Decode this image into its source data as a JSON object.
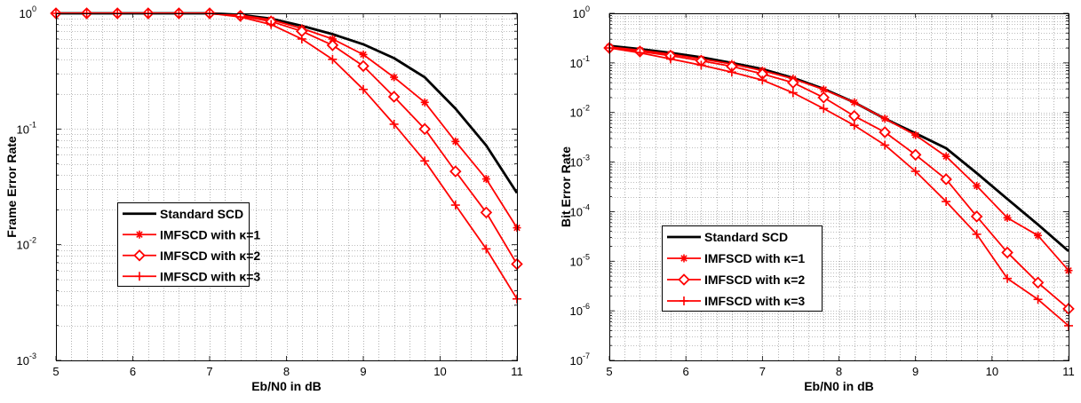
{
  "chart_data": [
    {
      "type": "line",
      "xlabel": "Eb/N0 in dB",
      "ylabel": "Frame Error Rate",
      "y_scale": "log",
      "xlim": [
        5,
        11
      ],
      "ylim": [
        0.001,
        1
      ],
      "x_ticks": [
        "5",
        "6",
        "7",
        "8",
        "9",
        "10",
        "11"
      ],
      "y_ticks": [
        {
          "base": "10",
          "exp": "-3"
        },
        {
          "base": "10",
          "exp": "-2"
        },
        {
          "base": "10",
          "exp": "-1"
        },
        {
          "base": "10",
          "exp": "0"
        }
      ],
      "grid": true,
      "legend_placement": "lower-left",
      "series": [
        {
          "name": "Standard SCD",
          "color": "#000000",
          "marker": "none",
          "x": [
            5,
            5.4,
            5.8,
            6.2,
            6.6,
            7,
            7.4,
            7.8,
            8.2,
            8.6,
            9,
            9.4,
            9.8,
            10.2,
            10.6,
            11
          ],
          "y": [
            1,
            1,
            1,
            1,
            1,
            1,
            0.97,
            0.9,
            0.78,
            0.66,
            0.54,
            0.41,
            0.28,
            0.15,
            0.072,
            0.028
          ]
        },
        {
          "name": "IMFSCD with κ=1",
          "color": "#ff0000",
          "marker": "star",
          "x": [
            5,
            5.4,
            5.8,
            6.2,
            6.6,
            7,
            7.4,
            7.8,
            8.2,
            8.6,
            9,
            9.4,
            9.8,
            10.2,
            10.6,
            11
          ],
          "y": [
            1,
            1,
            1,
            1,
            1,
            1,
            0.96,
            0.88,
            0.74,
            0.6,
            0.44,
            0.28,
            0.17,
            0.078,
            0.037,
            0.014
          ]
        },
        {
          "name": "IMFSCD with κ=2",
          "color": "#ff0000",
          "marker": "diamond",
          "x": [
            5,
            5.4,
            5.8,
            6.2,
            6.6,
            7,
            7.4,
            7.8,
            8.2,
            8.6,
            9,
            9.4,
            9.8,
            10.2,
            10.6,
            11
          ],
          "y": [
            1,
            1,
            1,
            1,
            1,
            1,
            0.95,
            0.85,
            0.7,
            0.53,
            0.35,
            0.19,
            0.1,
            0.043,
            0.019,
            0.0068
          ]
        },
        {
          "name": "IMFSCD with κ=3",
          "color": "#ff0000",
          "marker": "plus",
          "x": [
            5,
            5.4,
            5.8,
            6.2,
            6.6,
            7,
            7.4,
            7.8,
            8.2,
            8.6,
            9,
            9.4,
            9.8,
            10.2,
            10.6,
            11
          ],
          "y": [
            1,
            1,
            1,
            1,
            1,
            1,
            0.93,
            0.8,
            0.6,
            0.4,
            0.22,
            0.11,
            0.053,
            0.022,
            0.0092,
            0.0034
          ]
        }
      ]
    },
    {
      "type": "line",
      "xlabel": "Eb/N0 in dB",
      "ylabel": "Bit Error Rate",
      "y_scale": "log",
      "xlim": [
        5,
        11
      ],
      "ylim": [
        1e-07,
        1
      ],
      "x_ticks": [
        "5",
        "6",
        "7",
        "8",
        "9",
        "10",
        "11"
      ],
      "y_ticks": [
        {
          "base": "10",
          "exp": "-7"
        },
        {
          "base": "10",
          "exp": "-6"
        },
        {
          "base": "10",
          "exp": "-5"
        },
        {
          "base": "10",
          "exp": "-4"
        },
        {
          "base": "10",
          "exp": "-3"
        },
        {
          "base": "10",
          "exp": "-2"
        },
        {
          "base": "10",
          "exp": "-1"
        },
        {
          "base": "10",
          "exp": "0"
        }
      ],
      "grid": true,
      "legend_placement": "lower-left",
      "series": [
        {
          "name": "Standard SCD",
          "color": "#000000",
          "marker": "none",
          "x": [
            5,
            5.4,
            5.8,
            6.2,
            6.6,
            7,
            7.4,
            7.8,
            8.2,
            8.6,
            9,
            9.4,
            9.8,
            10.2,
            10.6,
            11
          ],
          "y": [
            0.22,
            0.19,
            0.16,
            0.13,
            0.1,
            0.075,
            0.05,
            0.03,
            0.016,
            0.0075,
            0.0038,
            0.0019,
            0.0006,
            0.00018,
            5.5e-05,
            1.6e-05
          ]
        },
        {
          "name": "IMFSCD with κ=1",
          "color": "#ff0000",
          "marker": "star",
          "x": [
            5,
            5.4,
            5.8,
            6.2,
            6.6,
            7,
            7.4,
            7.8,
            8.2,
            8.6,
            9,
            9.4,
            9.8,
            10.2,
            10.6,
            11
          ],
          "y": [
            0.21,
            0.18,
            0.15,
            0.12,
            0.095,
            0.07,
            0.048,
            0.029,
            0.016,
            0.0075,
            0.0035,
            0.0013,
            0.00033,
            7.5e-05,
            3.3e-05,
            6.5e-06
          ]
        },
        {
          "name": "IMFSCD with κ=2",
          "color": "#ff0000",
          "marker": "diamond",
          "x": [
            5,
            5.4,
            5.8,
            6.2,
            6.6,
            7,
            7.4,
            7.8,
            8.2,
            8.6,
            9,
            9.4,
            9.8,
            10.2,
            10.6,
            11
          ],
          "y": [
            0.2,
            0.17,
            0.14,
            0.11,
            0.085,
            0.06,
            0.04,
            0.02,
            0.0085,
            0.004,
            0.0014,
            0.00045,
            8e-05,
            1.5e-05,
            3.7e-06,
            1.1e-06
          ]
        },
        {
          "name": "IMFSCD with κ=3",
          "color": "#ff0000",
          "marker": "plus",
          "x": [
            5,
            5.4,
            5.8,
            6.2,
            6.6,
            7,
            7.4,
            7.8,
            8.2,
            8.6,
            9,
            9.4,
            9.8,
            10.2,
            10.6,
            11
          ],
          "y": [
            0.2,
            0.16,
            0.12,
            0.09,
            0.065,
            0.045,
            0.025,
            0.012,
            0.0055,
            0.0022,
            0.00065,
            0.00016,
            3.5e-05,
            4.5e-06,
            1.7e-06,
            5e-07
          ]
        }
      ]
    }
  ]
}
